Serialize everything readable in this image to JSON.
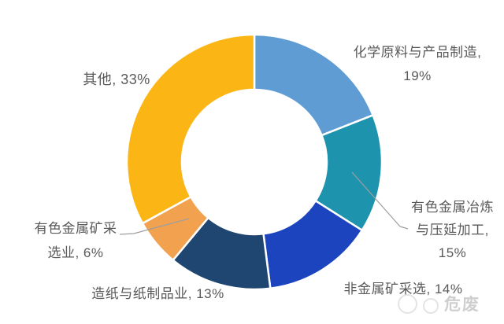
{
  "chart_data": {
    "type": "pie",
    "subtype": "donut",
    "title": "",
    "legend_position": "none",
    "direction": "clockwise",
    "start_angle_deg": 0,
    "inner_radius_ratio": 0.57,
    "labels_color": "#595959",
    "background_color": "#ffffff",
    "separator_color": "#ffffff",
    "leader_line_color": "#9e9e9e",
    "segments": [
      {
        "label": "化学原料与产品制造",
        "value": 19,
        "color": "#5E9CD3",
        "display_lines": [
          "化学原料与产品制造,",
          "19%"
        ]
      },
      {
        "label": "有色金属冶炼与压延加工",
        "value": 15,
        "color": "#1E93AE",
        "display_lines": [
          "有色金属冶炼",
          "与压延加工,",
          "15%"
        ]
      },
      {
        "label": "非金属矿采选",
        "value": 14,
        "color": "#1C44BE",
        "display_lines": [
          "非金属矿采选, 14%"
        ]
      },
      {
        "label": "造纸与纸制品业",
        "value": 13,
        "color": "#1F4571",
        "display_lines": [
          "造纸与纸制品业, 13%"
        ]
      },
      {
        "label": "有色金属矿采选业",
        "value": 6,
        "color": "#F2A24F",
        "display_lines": [
          "有色金属矿采",
          "选业, 6%"
        ]
      },
      {
        "label": "其他",
        "value": 33,
        "color": "#FBB616",
        "display_lines": [
          "其他, 33%"
        ]
      }
    ]
  },
  "watermark": {
    "text": "危废"
  }
}
